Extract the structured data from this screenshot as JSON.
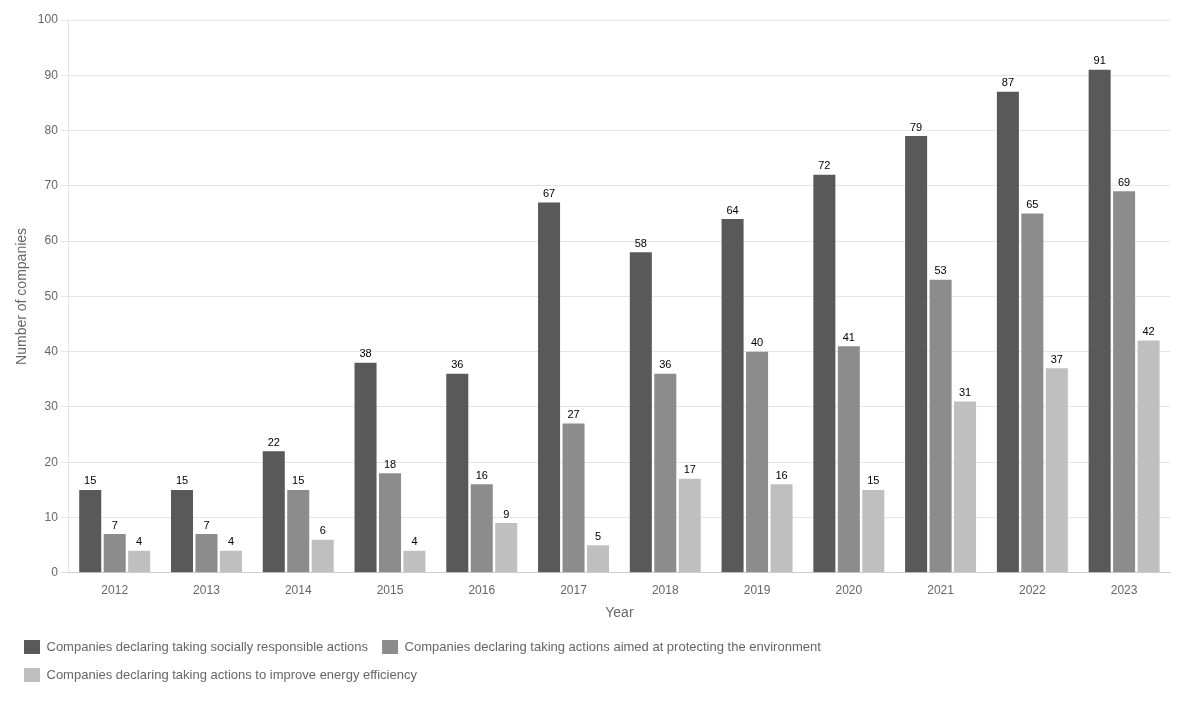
{
  "chart_data": {
    "type": "bar",
    "xlabel": "Year",
    "ylabel": "Number of companies",
    "categories": [
      "2012",
      "2013",
      "2014",
      "2015",
      "2016",
      "2017",
      "2018",
      "2019",
      "2020",
      "2021",
      "2022",
      "2023"
    ],
    "series": [
      {
        "name": "Companies declaring taking socially responsible actions",
        "color": "#595959",
        "values": [
          15,
          15,
          22,
          38,
          36,
          67,
          58,
          64,
          72,
          79,
          87,
          91
        ]
      },
      {
        "name": "Companies declaring taking actions aimed at protecting the environment",
        "color": "#8c8c8c",
        "values": [
          7,
          7,
          15,
          18,
          16,
          27,
          36,
          40,
          41,
          53,
          65,
          69
        ]
      },
      {
        "name": "Companies declaring taking actions to improve energy efficiency",
        "color": "#bfbfbf",
        "values": [
          4,
          4,
          6,
          4,
          9,
          5,
          17,
          16,
          15,
          31,
          37,
          42
        ]
      }
    ],
    "ylim": [
      0,
      100
    ],
    "yticks": [
      0,
      10,
      20,
      30,
      40,
      50,
      60,
      70,
      80,
      90,
      100
    ],
    "grid": true,
    "legend": "bottom",
    "data_labels": true
  }
}
